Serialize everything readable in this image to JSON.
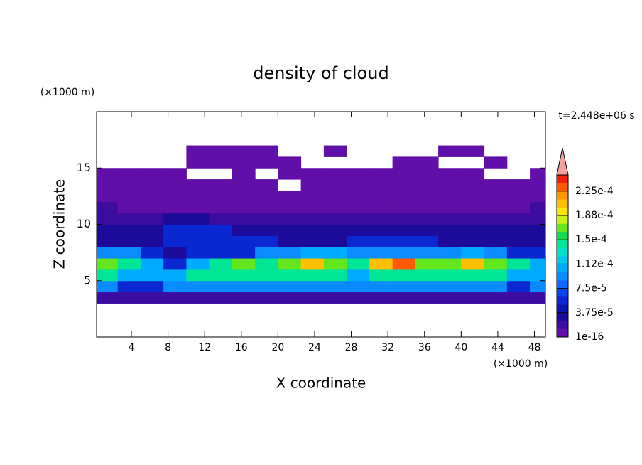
{
  "chart_data": {
    "type": "contour",
    "title": "density of cloud",
    "x_label": "X coordinate",
    "y_label": "Z coordinate",
    "x_unit": "(×1000 m)",
    "y_unit": "(×1000 m)",
    "annotation": "t=2.448e+06 s",
    "xlim": [
      0.2,
      49.2
    ],
    "ylim": [
      0,
      20
    ],
    "xticks": [
      4,
      8,
      12,
      16,
      20,
      24,
      28,
      32,
      36,
      40,
      44,
      48
    ],
    "yticks": [
      5,
      10,
      15
    ],
    "x": [
      1.25,
      3.75,
      6.25,
      8.75,
      11.25,
      13.75,
      16.25,
      18.75,
      21.25,
      23.75,
      26.25,
      28.75,
      31.25,
      33.75,
      36.25,
      38.75,
      41.25,
      43.75,
      46.25,
      48.75
    ],
    "z": [
      3.5,
      4.5,
      5.5,
      6.5,
      7.5,
      8.5,
      9.5,
      10.5,
      11.5,
      12.5,
      13.5,
      14.5,
      15.5,
      16.5
    ],
    "values": [
      [
        1.5e-05,
        1.5e-05,
        1.5e-05,
        1.5e-05,
        1.5e-05,
        1.5e-05,
        1.5e-05,
        1.5e-05,
        1.5e-05,
        1.5e-05,
        1.5e-05,
        1.5e-05,
        1.5e-05,
        1.5e-05,
        1.5e-05,
        1.5e-05,
        1.5e-05,
        1.5e-05,
        1.5e-05,
        1.5e-05
      ],
      [
        9e-05,
        6e-05,
        6e-05,
        9e-05,
        9e-05,
        9e-05,
        9e-05,
        9e-05,
        9e-05,
        9e-05,
        9e-05,
        9e-05,
        9e-05,
        9e-05,
        9e-05,
        9e-05,
        9e-05,
        9e-05,
        6e-05,
        9e-05
      ],
      [
        0.00014,
        0.00011,
        0.00011,
        0.00011,
        0.00014,
        0.00014,
        0.00014,
        0.00014,
        0.00014,
        0.00014,
        0.00014,
        0.00011,
        0.00014,
        0.00014,
        0.00014,
        0.00014,
        0.00014,
        0.00014,
        0.00011,
        0.00011
      ],
      [
        0.00017,
        0.00014,
        0.00011,
        6e-05,
        0.00011,
        0.00014,
        0.00017,
        0.00014,
        0.00017,
        0.0002,
        0.00017,
        0.00014,
        0.0002,
        0.00023,
        0.00017,
        0.00017,
        0.0002,
        0.00017,
        0.00014,
        0.00011
      ],
      [
        9e-05,
        9e-05,
        6e-05,
        3e-05,
        6e-05,
        6e-05,
        6e-05,
        9e-05,
        9e-05,
        0.00011,
        0.00011,
        9e-05,
        9e-05,
        9e-05,
        9e-05,
        9e-05,
        0.00011,
        9e-05,
        6e-05,
        6e-05
      ],
      [
        3e-05,
        3e-05,
        3e-05,
        6e-05,
        6e-05,
        6e-05,
        6e-05,
        6e-05,
        3e-05,
        3e-05,
        3e-05,
        6e-05,
        6e-05,
        6e-05,
        6e-05,
        3e-05,
        3e-05,
        3e-05,
        3e-05,
        3e-05
      ],
      [
        3e-05,
        3e-05,
        3e-05,
        6e-05,
        6e-05,
        6e-05,
        3e-05,
        3e-05,
        3e-05,
        3e-05,
        3e-05,
        3e-05,
        3e-05,
        3e-05,
        3e-05,
        3e-05,
        3e-05,
        3e-05,
        3e-05,
        3e-05
      ],
      [
        1.5e-05,
        1.5e-05,
        1.5e-05,
        3e-05,
        3e-05,
        1.5e-05,
        1.5e-05,
        1.5e-05,
        1.5e-05,
        1.5e-05,
        1.5e-05,
        1.5e-05,
        1.5e-05,
        1.5e-05,
        1.5e-05,
        1.5e-05,
        1.5e-05,
        1.5e-05,
        1.5e-05,
        1.5e-05
      ],
      [
        1.5e-05,
        5e-06,
        5e-06,
        5e-06,
        5e-06,
        5e-06,
        5e-06,
        5e-06,
        5e-06,
        5e-06,
        5e-06,
        5e-06,
        5e-06,
        5e-06,
        5e-06,
        5e-06,
        5e-06,
        5e-06,
        5e-06,
        1.5e-05
      ],
      [
        5e-06,
        5e-06,
        5e-06,
        5e-06,
        5e-06,
        5e-06,
        5e-06,
        5e-06,
        5e-06,
        5e-06,
        5e-06,
        5e-06,
        5e-06,
        5e-06,
        5e-06,
        5e-06,
        5e-06,
        5e-06,
        5e-06,
        5e-06
      ],
      [
        5e-06,
        5e-06,
        5e-06,
        5e-06,
        5e-06,
        5e-06,
        5e-06,
        5e-06,
        null,
        5e-06,
        5e-06,
        5e-06,
        5e-06,
        5e-06,
        5e-06,
        5e-06,
        5e-06,
        5e-06,
        5e-06,
        5e-06
      ],
      [
        5e-06,
        5e-06,
        5e-06,
        5e-06,
        null,
        null,
        5e-06,
        null,
        5e-06,
        5e-06,
        5e-06,
        5e-06,
        5e-06,
        5e-06,
        5e-06,
        5e-06,
        5e-06,
        null,
        null,
        5e-06
      ],
      [
        null,
        null,
        null,
        null,
        5e-06,
        5e-06,
        5e-06,
        5e-06,
        5e-06,
        null,
        null,
        null,
        null,
        5e-06,
        5e-06,
        null,
        null,
        5e-06,
        null,
        null
      ],
      [
        null,
        null,
        null,
        null,
        5e-06,
        5e-06,
        5e-06,
        5e-06,
        null,
        null,
        5e-06,
        null,
        null,
        null,
        null,
        5e-06,
        5e-06,
        null,
        null,
        null
      ]
    ],
    "levels": [
      1e-16,
      1.25e-05,
      2.5e-05,
      3.75e-05,
      5e-05,
      6.25e-05,
      7.5e-05,
      8.75e-05,
      0.0001,
      0.0001125,
      0.000125,
      0.0001375,
      0.00015,
      0.0001625,
      0.000175,
      0.0001875,
      0.0002,
      0.0002125,
      0.000225,
      0.0002375,
      0.00025
    ],
    "colors": [
      "#6010a8",
      "#3c0ca0",
      "#1c0a9a",
      "#0c14b4",
      "#0a28d2",
      "#0a46f0",
      "#1464ff",
      "#0a8cff",
      "#00aaff",
      "#00c8f0",
      "#00e0c8",
      "#00e696",
      "#14dc50",
      "#64e61e",
      "#c8f014",
      "#ffe600",
      "#ffc000",
      "#ff9600",
      "#ff5a00",
      "#f01e0a"
    ],
    "extend_color": "#f5a0a0",
    "colorbar_ticks": [
      {
        "value": 1e-16,
        "label": "1e-16"
      },
      {
        "value": 3.75e-05,
        "label": "3.75e-5"
      },
      {
        "value": 7.5e-05,
        "label": "7.5e-5"
      },
      {
        "value": 0.0001125,
        "label": "1.12e-4"
      },
      {
        "value": 0.00015,
        "label": "1.5e-4"
      },
      {
        "value": 0.0001875,
        "label": "1.88e-4"
      },
      {
        "value": 0.000225,
        "label": "2.25e-4"
      }
    ]
  }
}
